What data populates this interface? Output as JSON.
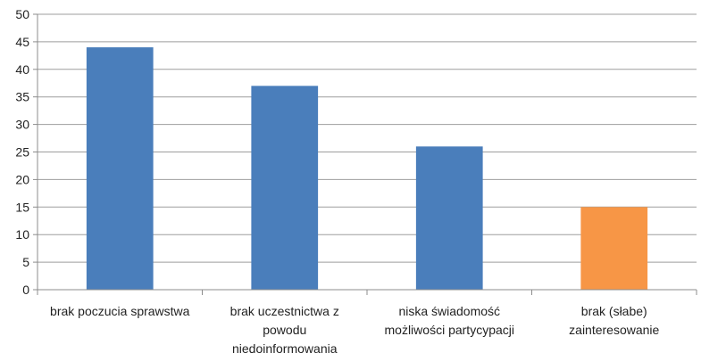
{
  "chart_data": {
    "type": "bar",
    "title": "",
    "xlabel": "",
    "ylabel": "",
    "categories": [
      "brak poczucia sprawstwa",
      "brak uczestnictwa z powodu niedoinformowania",
      "niska świadomość możliwości partycypacji",
      "brak (słabe) zainteresowanie"
    ],
    "category_label_lines": [
      [
        "brak poczucia sprawstwa"
      ],
      [
        "brak uczestnictwa z",
        "powodu",
        "niedoinformowania"
      ],
      [
        "niska świadomość",
        "możliwości partycypacji"
      ],
      [
        "brak (słabe)",
        "zainteresowanie"
      ]
    ],
    "values": [
      44,
      37,
      26,
      15
    ],
    "bar_colors": [
      "#4a7ebb",
      "#4a7ebb",
      "#4a7ebb",
      "#f79646"
    ],
    "ylim": [
      0,
      50
    ],
    "yticks": [
      0,
      5,
      10,
      15,
      20,
      25,
      30,
      35,
      40,
      45,
      50
    ],
    "grid": true,
    "legend": "none"
  },
  "colors": {
    "gridline": "#9e9e9e",
    "axis": "#8c8c8c",
    "text": "#222222"
  }
}
